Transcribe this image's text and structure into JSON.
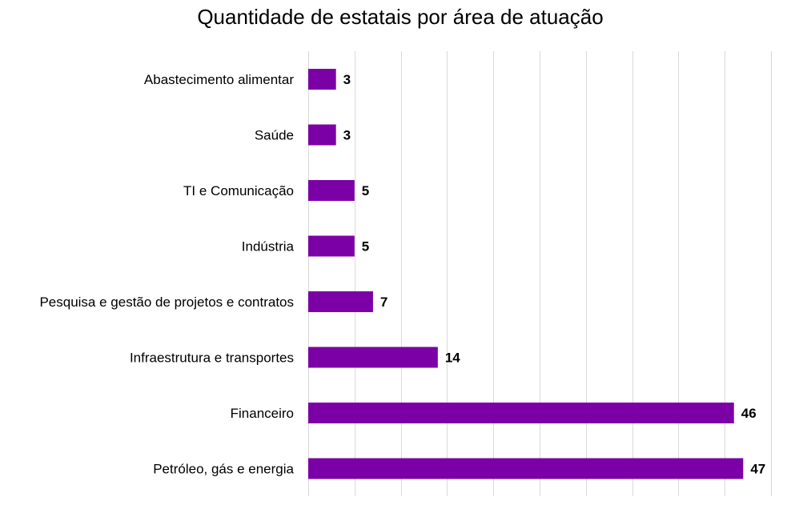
{
  "chart_data": {
    "type": "bar",
    "orientation": "horizontal",
    "title": "Quantidade de estatais por área de atuação",
    "categories": [
      "Abastecimento alimentar",
      "Saúde",
      "TI e Comunicação",
      "Indústria",
      "Pesquisa e gestão de projetos e contratos",
      "Infraestrutura e transportes",
      "Financeiro",
      "Petróleo, gás e energia"
    ],
    "values": [
      3,
      3,
      5,
      5,
      7,
      14,
      46,
      47
    ],
    "xlim": [
      0,
      50
    ],
    "grid": true,
    "data_labels": true,
    "bar_color": "#7B00A6"
  }
}
